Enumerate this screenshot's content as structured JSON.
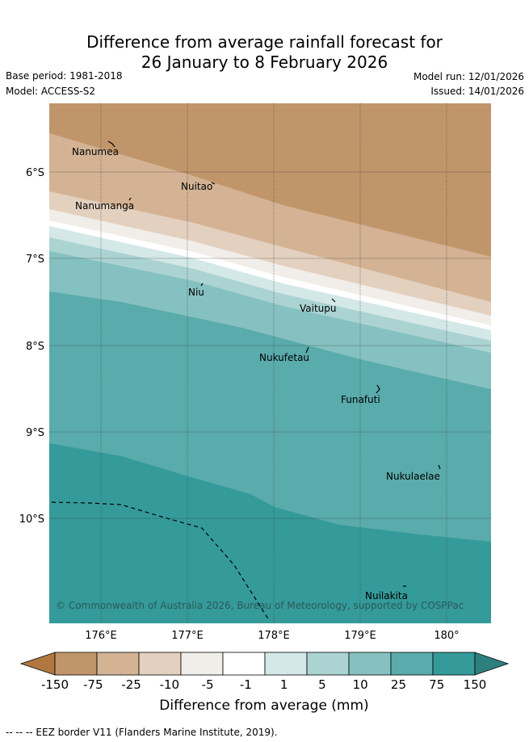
{
  "header": {
    "title_line1": "Difference from average rainfall forecast for",
    "title_line2": "26 January to 8 February 2026",
    "base_period": "Base period: 1981-2018",
    "model": "Model: ACCESS-S2",
    "model_run": "Model run: 12/01/2026",
    "issued": "Issued: 14/01/2026"
  },
  "map": {
    "lat_labels": [
      "6°S",
      "7°S",
      "8°S",
      "9°S",
      "10°S"
    ],
    "lon_labels": [
      "176°E",
      "177°E",
      "178°E",
      "179°E",
      "180°"
    ],
    "places": [
      "Nanumea",
      "Nuitao",
      "Nanumanga",
      "Niu",
      "Vaitupu",
      "Nukufetau",
      "Funafuti",
      "Nukulaelae",
      "Nuilakita"
    ],
    "copyright": "© Commonwealth of Australia 2026, Bureau of Meteorology, supported by COSPPac"
  },
  "colorbar": {
    "labels": [
      "-150",
      "-75",
      "-25",
      "-10",
      "-5",
      "-1",
      "1",
      "5",
      "10",
      "25",
      "75",
      "150"
    ],
    "colors": [
      "#b07840",
      "#c1956a",
      "#d3b394",
      "#e3d0bf",
      "#f1ede8",
      "#ffffff",
      "#d3e8e7",
      "#aad3d2",
      "#85c1c0",
      "#5aabab",
      "#349a9a",
      "#2f7f7f"
    ],
    "xlabel": "Difference from average (mm)"
  },
  "footer": {
    "eez_legend": "--  --  -- EEZ border V11 (Flanders Marine Institute, 2019)."
  }
}
